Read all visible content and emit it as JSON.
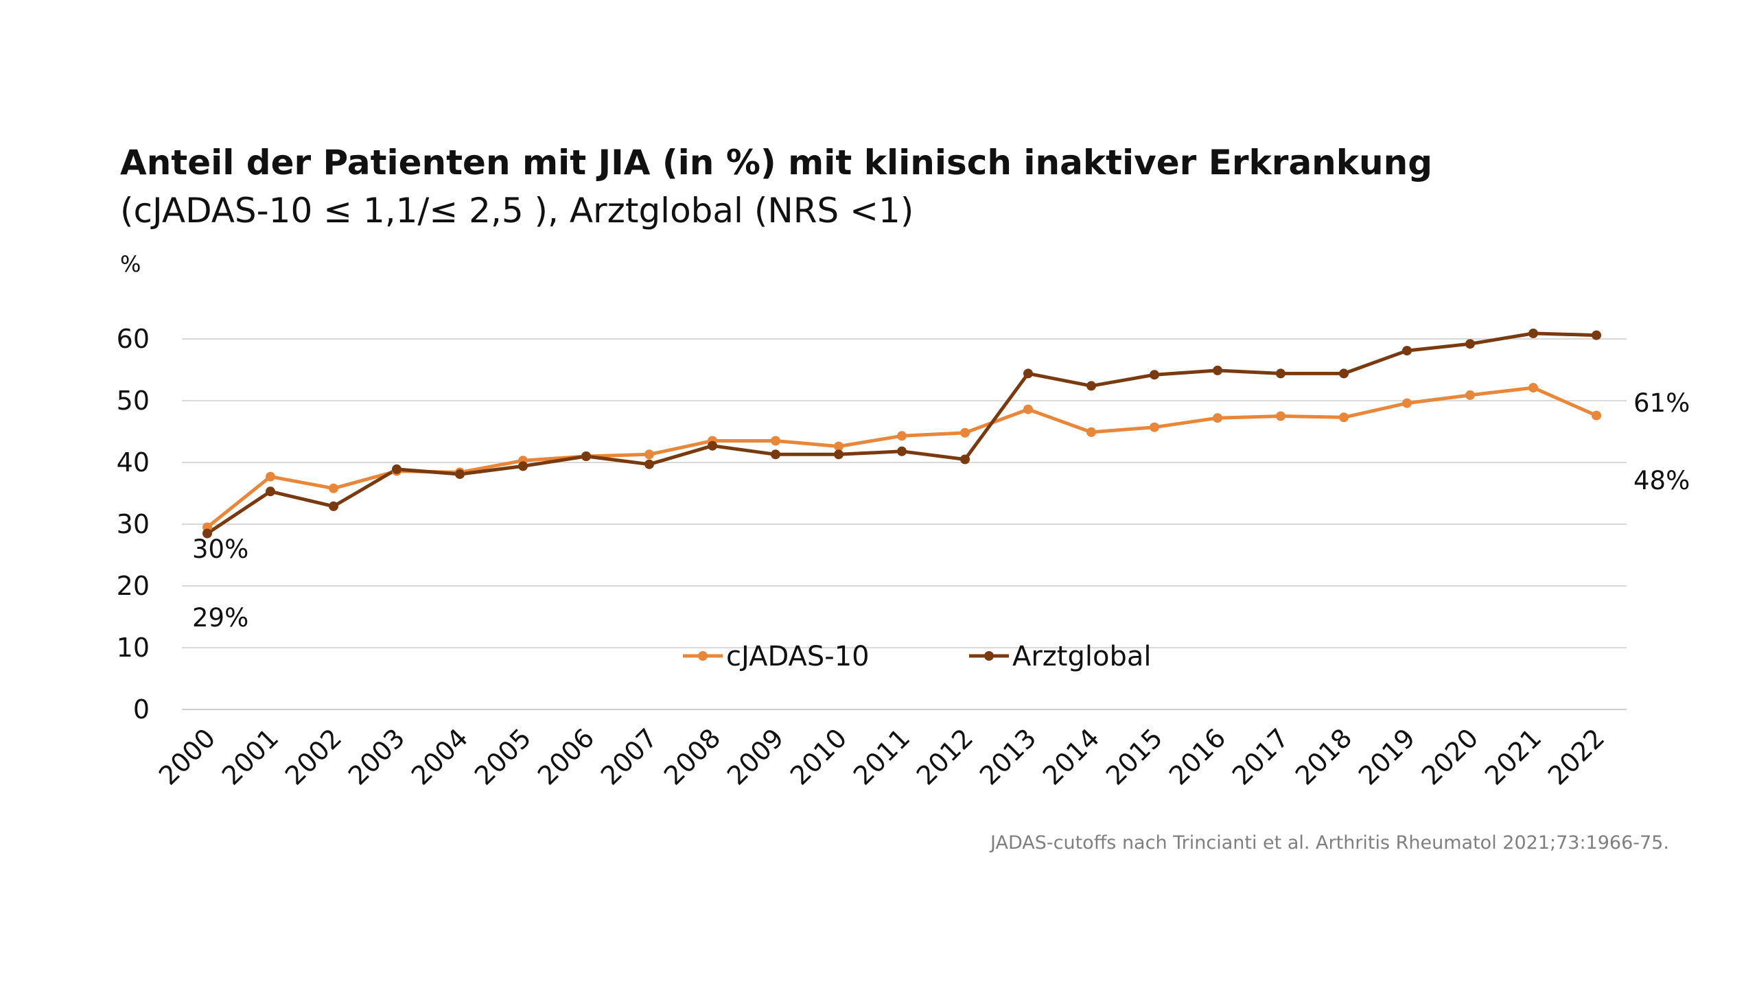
{
  "chart_data": {
    "type": "line",
    "title": "Anteil der Patienten mit JIA (in %) mit klinisch inaktiver Erkrankung",
    "subtitle": "(cJADAS-10 ≤ 1,1/≤ 2,5 ), Arztglobal (NRS <1)",
    "ylabel": "%",
    "ylim": [
      0,
      60
    ],
    "yticks": [
      0,
      10,
      20,
      30,
      40,
      50,
      60
    ],
    "grid": true,
    "legend_position": "bottom-center",
    "categories": [
      "2000",
      "2001",
      "2002",
      "2003",
      "2004",
      "2005",
      "2006",
      "2007",
      "2008",
      "2009",
      "2010",
      "2011",
      "2012",
      "2013",
      "2014",
      "2015",
      "2016",
      "2017",
      "2018",
      "2019",
      "2020",
      "2021",
      "2022"
    ],
    "series": [
      {
        "name": "cJADAS-10",
        "color": "#E8873A",
        "values": [
          29.5,
          37.7,
          35.8,
          38.6,
          38.4,
          40.3,
          41.0,
          41.3,
          43.5,
          43.5,
          42.6,
          44.3,
          44.8,
          48.6,
          44.9,
          45.7,
          47.2,
          47.5,
          47.3,
          49.6,
          50.9,
          52.1,
          47.6
        ]
      },
      {
        "name": "Arztglobal",
        "color": "#7A3A10",
        "values": [
          28.5,
          35.3,
          32.9,
          38.9,
          38.1,
          39.4,
          41.0,
          39.7,
          42.7,
          41.3,
          41.3,
          41.8,
          40.5,
          54.4,
          52.4,
          54.2,
          54.9,
          54.4,
          54.4,
          58.1,
          59.2,
          60.9,
          60.6
        ]
      }
    ],
    "annotations": [
      "30%",
      "29%",
      "61%",
      "48%"
    ],
    "footnote": "JADAS-cutoffs nach Trincianti et al. Arthritis Rheumatol 2021;73:1966-75."
  }
}
